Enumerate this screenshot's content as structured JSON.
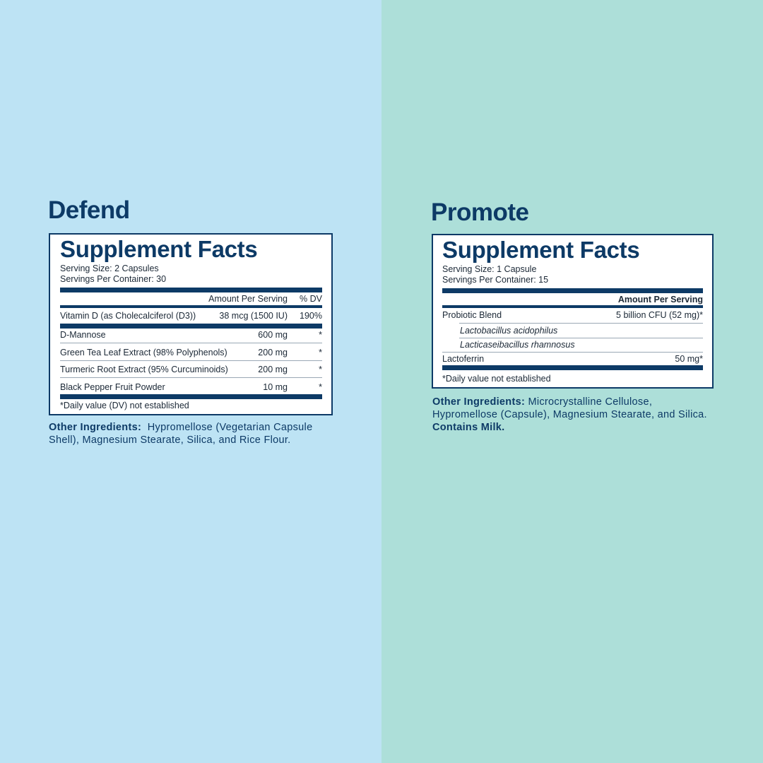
{
  "panels": [
    {
      "title": "Defend",
      "facts": {
        "heading": "Supplement Facts",
        "serving_size": "Serving Size: 2 Capsules",
        "servings_per_container": "Servings Per Container: 30",
        "columns": [
          "Amount Per Serving",
          "% DV"
        ],
        "rows": [
          {
            "name": "Vitamin D (as Cholecalciferol (D3))",
            "amount": "38 mcg (1500 IU)",
            "dv": "190%"
          },
          {
            "name": "D-Mannose",
            "amount": "600 mg",
            "dv": "*"
          },
          {
            "name": "Green Tea Leaf Extract (98% Polyphenols)",
            "amount": "200 mg",
            "dv": "*"
          },
          {
            "name": "Turmeric Root Extract (95% Curcuminoids)",
            "amount": "200 mg",
            "dv": "*"
          },
          {
            "name": "Black Pepper Fruit Powder",
            "amount": "10 mg",
            "dv": "*"
          }
        ],
        "footnote": "*Daily value (DV) not established"
      },
      "other_ingredients": {
        "label": "Other Ingredients:",
        "text": "Hypromellose (Vegetarian Capsule Shell), Magnesium Stearate, Silica, and Rice Flour."
      }
    },
    {
      "title": "Promote",
      "facts": {
        "heading": "Supplement Facts",
        "serving_size": "Serving Size: 1 Capsule",
        "servings_per_container": "Servings Per Container: 15",
        "columns": [
          "Amount Per Serving"
        ],
        "rows": [
          {
            "name": "Probiotic Blend",
            "amount": "5 billion CFU (52 mg)*",
            "subitems": [
              "Lactobacillus acidophilus",
              "Lacticaseibacillus rhamnosus"
            ]
          },
          {
            "name": "Lactoferrin",
            "amount": "50 mg*"
          }
        ],
        "footnote": "*Daily value not established"
      },
      "other_ingredients": {
        "label": "Other Ingredients:",
        "text": "Microcrystalline Cellulose, Hypromellose (Capsule), Magnesium Stearate, and Silica.",
        "bold_text": "Contains Milk."
      }
    }
  ]
}
